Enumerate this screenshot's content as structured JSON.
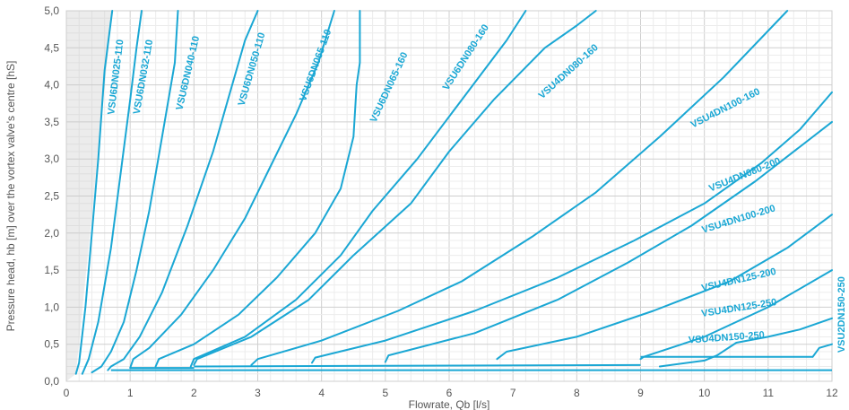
{
  "chart_data": {
    "type": "line",
    "xlabel": "Flowrate, Qb [l/s]",
    "ylabel": "Pressure head, hb [m] over the vortex valve's centre [hS]",
    "xlim": [
      0,
      12
    ],
    "ylim": [
      0,
      5
    ],
    "x_ticks": [
      "0",
      "1",
      "2",
      "3",
      "4",
      "5",
      "6",
      "7",
      "8",
      "9",
      "10",
      "11",
      "12"
    ],
    "y_ticks": [
      "0,0",
      "0,5",
      "1,0",
      "1,5",
      "2,0",
      "2,5",
      "3,0",
      "3,5",
      "4,0",
      "4,5",
      "5,0"
    ],
    "grid": true,
    "colors": {
      "line": "#1aa7d4",
      "grid": "#dcdcdc",
      "shade": "#ececec",
      "text": "#555555"
    },
    "series": [
      {
        "name": "VSU6DN025-110",
        "points": [
          [
            0.15,
            0.1
          ],
          [
            0.2,
            0.25
          ],
          [
            0.3,
            1.0
          ],
          [
            0.4,
            2.0
          ],
          [
            0.5,
            3.0
          ],
          [
            0.6,
            4.2
          ],
          [
            0.72,
            5.0
          ]
        ]
      },
      {
        "name": "VSU6DN032-110",
        "points": [
          [
            0.25,
            0.1
          ],
          [
            0.35,
            0.3
          ],
          [
            0.5,
            0.8
          ],
          [
            0.7,
            1.8
          ],
          [
            0.85,
            2.8
          ],
          [
            1.0,
            3.8
          ],
          [
            1.1,
            4.5
          ],
          [
            1.18,
            5.0
          ]
        ]
      },
      {
        "name": "VSU6DN040-110",
        "points": [
          [
            0.4,
            0.12
          ],
          [
            0.55,
            0.2
          ],
          [
            0.7,
            0.4
          ],
          [
            0.9,
            0.8
          ],
          [
            1.1,
            1.5
          ],
          [
            1.3,
            2.3
          ],
          [
            1.5,
            3.3
          ],
          [
            1.7,
            4.3
          ],
          [
            1.75,
            5.0
          ]
        ]
      },
      {
        "name": "VSU6DN050-110",
        "points": [
          [
            0.65,
            0.15
          ],
          [
            0.7,
            0.2
          ],
          [
            0.9,
            0.3
          ],
          [
            1.15,
            0.6
          ],
          [
            1.5,
            1.2
          ],
          [
            1.9,
            2.1
          ],
          [
            2.3,
            3.1
          ],
          [
            2.6,
            4.0
          ],
          [
            2.8,
            4.6
          ],
          [
            3.0,
            5.0
          ]
        ]
      },
      {
        "name": "VSU6DN065-110",
        "points": [
          [
            1.0,
            0.18
          ],
          [
            1.05,
            0.3
          ],
          [
            1.3,
            0.45
          ],
          [
            1.8,
            0.9
          ],
          [
            2.3,
            1.5
          ],
          [
            2.8,
            2.2
          ],
          [
            3.2,
            2.9
          ],
          [
            3.6,
            3.6
          ],
          [
            3.95,
            4.3
          ],
          [
            4.2,
            5.0
          ]
        ]
      },
      {
        "name": "VSU6DN065-160",
        "points": [
          [
            1.4,
            0.2
          ],
          [
            1.45,
            0.3
          ],
          [
            2.0,
            0.5
          ],
          [
            2.7,
            0.9
          ],
          [
            3.3,
            1.4
          ],
          [
            3.9,
            2.0
          ],
          [
            4.3,
            2.6
          ],
          [
            4.5,
            3.3
          ],
          [
            4.55,
            4.0
          ],
          [
            4.6,
            4.3
          ],
          [
            4.6,
            5.0
          ]
        ]
      },
      {
        "name": "VSU6DN080-160",
        "points": [
          [
            1.95,
            0.2
          ],
          [
            2.0,
            0.3
          ],
          [
            2.8,
            0.6
          ],
          [
            3.6,
            1.1
          ],
          [
            4.3,
            1.7
          ],
          [
            4.8,
            2.3
          ],
          [
            5.5,
            3.0
          ],
          [
            6.2,
            3.8
          ],
          [
            6.9,
            4.6
          ],
          [
            7.2,
            5.0
          ]
        ]
      },
      {
        "name": "VSU4DN080-160",
        "points": [
          [
            2.0,
            0.22
          ],
          [
            2.05,
            0.3
          ],
          [
            2.9,
            0.6
          ],
          [
            3.8,
            1.1
          ],
          [
            4.5,
            1.7
          ],
          [
            5.4,
            2.4
          ],
          [
            6.0,
            3.1
          ],
          [
            6.7,
            3.8
          ],
          [
            7.5,
            4.5
          ],
          [
            8.0,
            4.8
          ],
          [
            8.3,
            5.0
          ]
        ]
      },
      {
        "name": "VSU4DN100-160",
        "points": [
          [
            2.9,
            0.22
          ],
          [
            3.0,
            0.3
          ],
          [
            4.0,
            0.55
          ],
          [
            5.2,
            0.95
          ],
          [
            6.2,
            1.35
          ],
          [
            7.3,
            1.95
          ],
          [
            8.3,
            2.55
          ],
          [
            9.3,
            3.3
          ],
          [
            10.3,
            4.1
          ],
          [
            11.3,
            5.0
          ]
        ]
      },
      {
        "name": "VSU4DN080-200",
        "points": [
          [
            3.85,
            0.25
          ],
          [
            3.9,
            0.32
          ],
          [
            5.0,
            0.55
          ],
          [
            6.4,
            0.95
          ],
          [
            7.7,
            1.4
          ],
          [
            8.9,
            1.9
          ],
          [
            10.0,
            2.4
          ],
          [
            10.9,
            2.95
          ],
          [
            11.5,
            3.4
          ],
          [
            12.0,
            3.9
          ]
        ]
      },
      {
        "name": "VSU4DN100-200",
        "points": [
          [
            5.0,
            0.26
          ],
          [
            5.05,
            0.35
          ],
          [
            6.4,
            0.65
          ],
          [
            7.7,
            1.1
          ],
          [
            8.8,
            1.6
          ],
          [
            9.8,
            2.1
          ],
          [
            10.8,
            2.7
          ],
          [
            12.0,
            3.5
          ]
        ]
      },
      {
        "name": "VSU4DN125-200",
        "points": [
          [
            6.75,
            0.3
          ],
          [
            6.9,
            0.4
          ],
          [
            8.0,
            0.6
          ],
          [
            9.2,
            0.95
          ],
          [
            10.4,
            1.35
          ],
          [
            11.3,
            1.8
          ],
          [
            12.0,
            2.25
          ]
        ]
      },
      {
        "name": "VSU4DN125-250",
        "points": [
          [
            9.0,
            0.3
          ],
          [
            9.05,
            0.33
          ],
          [
            10.0,
            0.6
          ],
          [
            11.0,
            1.0
          ],
          [
            12.0,
            1.5
          ]
        ]
      },
      {
        "name": "VSU4DN150-250",
        "points": [
          [
            9.3,
            0.2
          ],
          [
            10.0,
            0.28
          ],
          [
            10.2,
            0.35
          ],
          [
            10.5,
            0.52
          ],
          [
            11.0,
            0.6
          ],
          [
            11.5,
            0.7
          ],
          [
            12.0,
            0.85
          ]
        ]
      },
      {
        "name": "VSU2DN150-250",
        "points": [
          [
            11.7,
            0.33
          ],
          [
            11.8,
            0.45
          ],
          [
            12.0,
            0.5
          ]
        ]
      }
    ],
    "labels": [
      {
        "name": "VSU6DN025-110",
        "x": 0.82,
        "y": 4.1,
        "angle": -83
      },
      {
        "name": "VSU6DN032-110",
        "x": 1.25,
        "y": 4.1,
        "angle": -80
      },
      {
        "name": "VSU6DN040-110",
        "x": 1.95,
        "y": 4.15,
        "angle": -77
      },
      {
        "name": "VSU6DN050-110",
        "x": 2.95,
        "y": 4.2,
        "angle": -74
      },
      {
        "name": "VSU6DN065-110",
        "x": 3.95,
        "y": 4.25,
        "angle": -70
      },
      {
        "name": "VSU6DN065-160",
        "x": 5.1,
        "y": 3.95,
        "angle": -65
      },
      {
        "name": "VSU6DN080-160",
        "x": 6.3,
        "y": 4.35,
        "angle": -57
      },
      {
        "name": "VSU4DN080-160",
        "x": 7.9,
        "y": 4.15,
        "angle": -42
      },
      {
        "name": "VSU4DN100-160",
        "x": 10.35,
        "y": 3.65,
        "angle": -27
      },
      {
        "name": "VSU4DN080-200",
        "x": 10.65,
        "y": 2.75,
        "angle": -22
      },
      {
        "name": "VSU4DN100-200",
        "x": 10.55,
        "y": 2.15,
        "angle": -17
      },
      {
        "name": "VSU4DN125-200",
        "x": 10.55,
        "y": 1.33,
        "angle": -13
      },
      {
        "name": "VSU4DN125-250",
        "x": 10.55,
        "y": 0.95,
        "angle": -9
      },
      {
        "name": "VSU4DN150-250",
        "x": 10.35,
        "y": 0.55,
        "angle": -4
      },
      {
        "name": "VSU2DN150-250",
        "x": 12.2,
        "y": 0.9,
        "angle": -90
      }
    ]
  }
}
